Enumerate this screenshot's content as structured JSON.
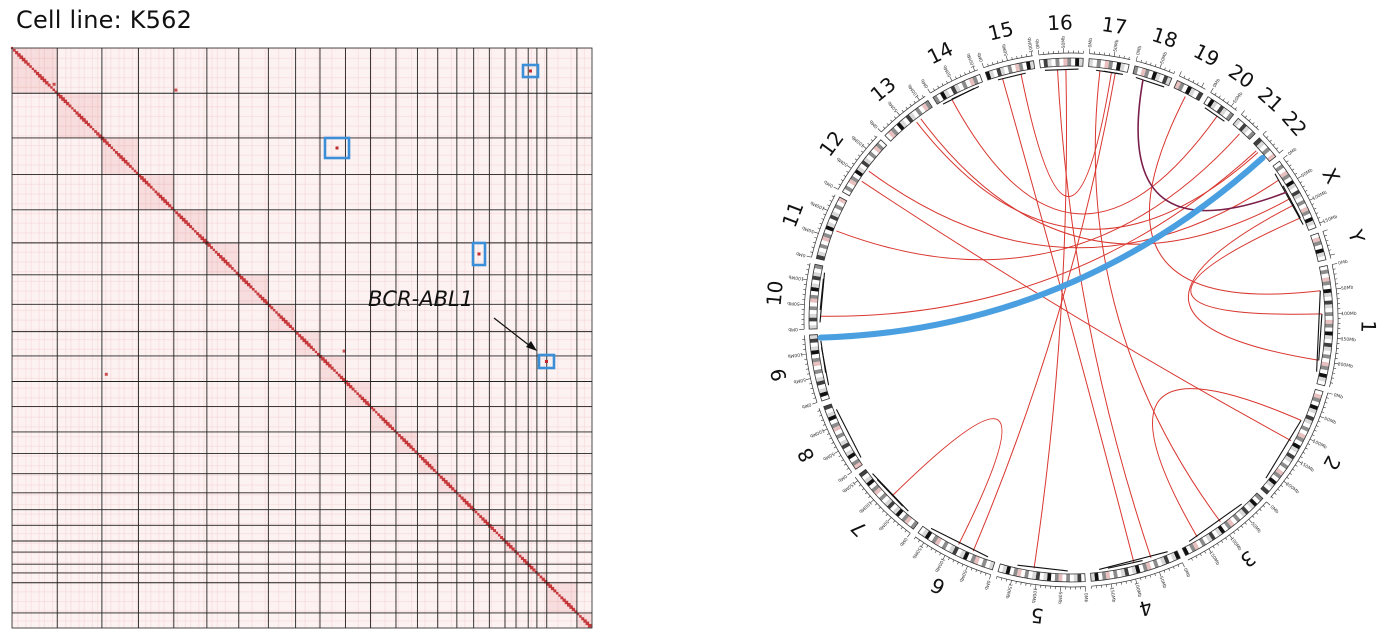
{
  "title": "Cell line: K562",
  "hic": {
    "annotation": "BCR-ABL1",
    "matrix_color": "#c0282b",
    "box_color": "#3b8fd9",
    "grid_color": "#222222"
  },
  "circos": {
    "chromosomes": [
      {
        "label": "1",
        "size_mb": 249
      },
      {
        "label": "2",
        "size_mb": 242
      },
      {
        "label": "3",
        "size_mb": 198
      },
      {
        "label": "4",
        "size_mb": 190
      },
      {
        "label": "5",
        "size_mb": 181
      },
      {
        "label": "6",
        "size_mb": 171
      },
      {
        "label": "7",
        "size_mb": 159
      },
      {
        "label": "8",
        "size_mb": 145
      },
      {
        "label": "9",
        "size_mb": 138
      },
      {
        "label": "10",
        "size_mb": 134
      },
      {
        "label": "11",
        "size_mb": 135
      },
      {
        "label": "12",
        "size_mb": 133
      },
      {
        "label": "13",
        "size_mb": 114
      },
      {
        "label": "14",
        "size_mb": 107
      },
      {
        "label": "15",
        "size_mb": 102
      },
      {
        "label": "16",
        "size_mb": 90
      },
      {
        "label": "17",
        "size_mb": 83
      },
      {
        "label": "18",
        "size_mb": 80
      },
      {
        "label": "19",
        "size_mb": 59
      },
      {
        "label": "20",
        "size_mb": 64
      },
      {
        "label": "21",
        "size_mb": 47
      },
      {
        "label": "22",
        "size_mb": 51
      },
      {
        "label": "X",
        "size_mb": 156
      },
      {
        "label": "Y",
        "size_mb": 57
      }
    ],
    "tick_labels": [
      "0Mb",
      "50Mb",
      "100Mb",
      "150Mb",
      "200Mb"
    ],
    "highlight_link": {
      "from": "9",
      "to": "22",
      "color": "#4a9fe0"
    },
    "link_colors": {
      "inter": "#d9362f",
      "intra": "#111111",
      "accent": "#7a1f4a"
    }
  }
}
